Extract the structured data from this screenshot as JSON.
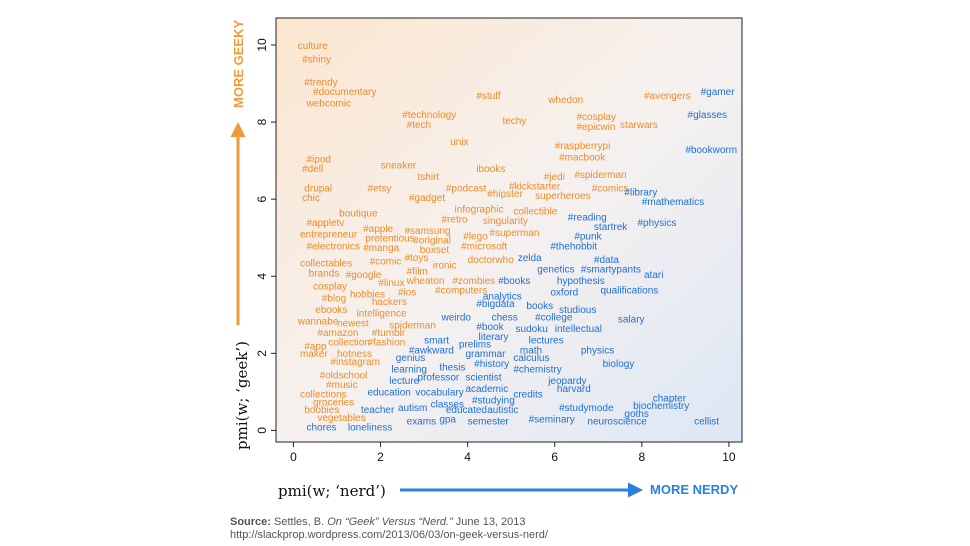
{
  "chart_data": {
    "type": "scatter",
    "title": "",
    "xlabel": "pmi(w; ‘nerd’)",
    "ylabel": "pmi(w; ‘geek’)",
    "x_direction_label": "MORE NERDY",
    "y_direction_label": "MORE GEEKY",
    "xlim": [
      -0.4,
      10.3
    ],
    "ylim": [
      -0.3,
      10.7
    ],
    "x_ticks": [
      0,
      2,
      4,
      6,
      8,
      10
    ],
    "y_ticks": [
      0,
      2,
      4,
      6,
      8,
      10
    ],
    "grid": false,
    "colors": {
      "geek": "#ef8c2a",
      "nerd": "#1f6fd6",
      "arrow_geek": "#f29a3a",
      "arrow_nerd": "#2a7fe0"
    },
    "words": [
      {
        "text": "culture",
        "x": 0.1,
        "y": 9.9,
        "group": "geek"
      },
      {
        "text": "#shiny",
        "x": 0.2,
        "y": 9.55,
        "group": "geek"
      },
      {
        "text": "#trendy",
        "x": 0.25,
        "y": 8.95,
        "group": "geek"
      },
      {
        "text": "#documentary",
        "x": 0.45,
        "y": 8.7,
        "group": "geek"
      },
      {
        "text": "webcomic",
        "x": 0.3,
        "y": 8.4,
        "group": "geek"
      },
      {
        "text": "#stuff",
        "x": 4.2,
        "y": 8.6,
        "group": "geek"
      },
      {
        "text": "whedon",
        "x": 5.85,
        "y": 8.5,
        "group": "geek"
      },
      {
        "text": "#avengers",
        "x": 8.05,
        "y": 8.6,
        "group": "geek"
      },
      {
        "text": "#gamer",
        "x": 9.35,
        "y": 8.7,
        "group": "nerd"
      },
      {
        "text": "#technology",
        "x": 2.5,
        "y": 8.1,
        "group": "geek"
      },
      {
        "text": "#tech",
        "x": 2.6,
        "y": 7.85,
        "group": "geek"
      },
      {
        "text": "techy",
        "x": 4.8,
        "y": 7.95,
        "group": "geek"
      },
      {
        "text": "#cosplay",
        "x": 6.5,
        "y": 8.05,
        "group": "geek"
      },
      {
        "text": "#epicwin",
        "x": 6.5,
        "y": 7.8,
        "group": "geek"
      },
      {
        "text": "starwars",
        "x": 7.5,
        "y": 7.85,
        "group": "geek"
      },
      {
        "text": "#glasses",
        "x": 9.05,
        "y": 8.1,
        "group": "nerd"
      },
      {
        "text": "unix",
        "x": 3.6,
        "y": 7.4,
        "group": "geek"
      },
      {
        "text": "#raspberrypi",
        "x": 6.0,
        "y": 7.3,
        "group": "geek"
      },
      {
        "text": "#macbook",
        "x": 6.1,
        "y": 7.0,
        "group": "geek"
      },
      {
        "text": "#bookworm",
        "x": 9.0,
        "y": 7.2,
        "group": "nerd"
      },
      {
        "text": "#ipod",
        "x": 0.3,
        "y": 6.95,
        "group": "geek"
      },
      {
        "text": "#dell",
        "x": 0.2,
        "y": 6.7,
        "group": "geek"
      },
      {
        "text": "sneaker",
        "x": 2.0,
        "y": 6.8,
        "group": "geek"
      },
      {
        "text": "ibooks",
        "x": 4.2,
        "y": 6.7,
        "group": "geek"
      },
      {
        "text": "tshirt",
        "x": 2.85,
        "y": 6.5,
        "group": "geek"
      },
      {
        "text": "#jedi",
        "x": 5.75,
        "y": 6.5,
        "group": "geek"
      },
      {
        "text": "#spiderman",
        "x": 6.45,
        "y": 6.55,
        "group": "geek"
      },
      {
        "text": "drupal",
        "x": 0.25,
        "y": 6.2,
        "group": "geek"
      },
      {
        "text": "#etsy",
        "x": 1.7,
        "y": 6.2,
        "group": "geek"
      },
      {
        "text": "#podcast",
        "x": 3.5,
        "y": 6.2,
        "group": "geek"
      },
      {
        "text": "#kickstarter",
        "x": 4.95,
        "y": 6.25,
        "group": "geek"
      },
      {
        "text": "#comics",
        "x": 6.85,
        "y": 6.2,
        "group": "geek"
      },
      {
        "text": "#library",
        "x": 7.6,
        "y": 6.1,
        "group": "nerd"
      },
      {
        "text": "chic",
        "x": 0.2,
        "y": 5.95,
        "group": "geek"
      },
      {
        "text": "#gadget",
        "x": 2.65,
        "y": 5.95,
        "group": "geek"
      },
      {
        "text": "#hipster",
        "x": 4.45,
        "y": 6.05,
        "group": "geek"
      },
      {
        "text": "superheroes",
        "x": 5.55,
        "y": 6.0,
        "group": "geek"
      },
      {
        "text": "#mathematics",
        "x": 8.0,
        "y": 5.85,
        "group": "nerd"
      },
      {
        "text": "infographic",
        "x": 3.7,
        "y": 5.65,
        "group": "geek"
      },
      {
        "text": "collectible",
        "x": 5.05,
        "y": 5.6,
        "group": "geek"
      },
      {
        "text": "boutique",
        "x": 1.05,
        "y": 5.55,
        "group": "geek"
      },
      {
        "text": "#retro",
        "x": 3.4,
        "y": 5.4,
        "group": "geek"
      },
      {
        "text": "singularity",
        "x": 4.35,
        "y": 5.35,
        "group": "geek"
      },
      {
        "text": "#reading",
        "x": 6.3,
        "y": 5.45,
        "group": "nerd"
      },
      {
        "text": "#physics",
        "x": 7.9,
        "y": 5.3,
        "group": "nerd"
      },
      {
        "text": "startrek",
        "x": 6.9,
        "y": 5.2,
        "group": "nerd"
      },
      {
        "text": "#appletv",
        "x": 0.3,
        "y": 5.3,
        "group": "geek"
      },
      {
        "text": "#apple",
        "x": 1.6,
        "y": 5.15,
        "group": "geek"
      },
      {
        "text": "#samsung",
        "x": 2.55,
        "y": 5.1,
        "group": "geek"
      },
      {
        "text": "#superman",
        "x": 4.5,
        "y": 5.05,
        "group": "geek"
      },
      {
        "text": "entrepreneur",
        "x": 0.15,
        "y": 5.0,
        "group": "geek"
      },
      {
        "text": "pretentious",
        "x": 1.65,
        "y": 4.9,
        "group": "geek"
      },
      {
        "text": "#original",
        "x": 2.75,
        "y": 4.85,
        "group": "geek"
      },
      {
        "text": "#lego",
        "x": 3.9,
        "y": 4.95,
        "group": "geek"
      },
      {
        "text": "#punk",
        "x": 6.45,
        "y": 4.95,
        "group": "nerd"
      },
      {
        "text": "#electronics",
        "x": 0.3,
        "y": 4.7,
        "group": "geek"
      },
      {
        "text": "#manga",
        "x": 1.6,
        "y": 4.65,
        "group": "geek"
      },
      {
        "text": "boxset",
        "x": 2.9,
        "y": 4.6,
        "group": "geek"
      },
      {
        "text": "#microsoft",
        "x": 3.85,
        "y": 4.7,
        "group": "geek"
      },
      {
        "text": "#thehobbit",
        "x": 5.9,
        "y": 4.7,
        "group": "nerd"
      },
      {
        "text": "#toys",
        "x": 2.55,
        "y": 4.4,
        "group": "geek"
      },
      {
        "text": "zelda",
        "x": 5.15,
        "y": 4.4,
        "group": "nerd"
      },
      {
        "text": "#data",
        "x": 6.9,
        "y": 4.35,
        "group": "nerd"
      },
      {
        "text": "collectables",
        "x": 0.15,
        "y": 4.25,
        "group": "geek"
      },
      {
        "text": "#comic",
        "x": 1.75,
        "y": 4.3,
        "group": "geek"
      },
      {
        "text": "ironic",
        "x": 3.2,
        "y": 4.2,
        "group": "geek"
      },
      {
        "text": "doctorwho",
        "x": 4.0,
        "y": 4.35,
        "group": "geek"
      },
      {
        "text": "genetics",
        "x": 5.6,
        "y": 4.1,
        "group": "nerd"
      },
      {
        "text": "#smartypants",
        "x": 6.6,
        "y": 4.1,
        "group": "nerd"
      },
      {
        "text": "brands",
        "x": 0.35,
        "y": 4.0,
        "group": "geek"
      },
      {
        "text": "#google",
        "x": 1.2,
        "y": 3.95,
        "group": "geek"
      },
      {
        "text": "#film",
        "x": 2.6,
        "y": 4.05,
        "group": "geek"
      },
      {
        "text": "atari",
        "x": 8.05,
        "y": 3.95,
        "group": "nerd"
      },
      {
        "text": "#linux",
        "x": 1.95,
        "y": 3.75,
        "group": "geek"
      },
      {
        "text": "wheaton",
        "x": 2.6,
        "y": 3.8,
        "group": "geek"
      },
      {
        "text": "#zombies",
        "x": 3.65,
        "y": 3.8,
        "group": "geek"
      },
      {
        "text": "#books",
        "x": 4.7,
        "y": 3.8,
        "group": "nerd"
      },
      {
        "text": "hypothesis",
        "x": 6.05,
        "y": 3.8,
        "group": "nerd"
      },
      {
        "text": "cosplay",
        "x": 0.45,
        "y": 3.65,
        "group": "geek"
      },
      {
        "text": "#computers",
        "x": 3.25,
        "y": 3.55,
        "group": "geek"
      },
      {
        "text": "oxford",
        "x": 5.9,
        "y": 3.5,
        "group": "nerd"
      },
      {
        "text": "qualifications",
        "x": 7.05,
        "y": 3.55,
        "group": "nerd"
      },
      {
        "text": "#blog",
        "x": 0.65,
        "y": 3.35,
        "group": "geek"
      },
      {
        "text": "hobbies",
        "x": 1.3,
        "y": 3.45,
        "group": "geek"
      },
      {
        "text": "#ios",
        "x": 2.4,
        "y": 3.5,
        "group": "geek"
      },
      {
        "text": "analytics",
        "x": 4.35,
        "y": 3.4,
        "group": "nerd"
      },
      {
        "text": "hackers",
        "x": 1.8,
        "y": 3.25,
        "group": "geek"
      },
      {
        "text": "#bigdata",
        "x": 4.2,
        "y": 3.2,
        "group": "nerd"
      },
      {
        "text": "books",
        "x": 5.35,
        "y": 3.15,
        "group": "nerd"
      },
      {
        "text": "studious",
        "x": 6.1,
        "y": 3.05,
        "group": "nerd"
      },
      {
        "text": "ebooks",
        "x": 0.5,
        "y": 3.05,
        "group": "geek"
      },
      {
        "text": "intelligence",
        "x": 1.45,
        "y": 2.95,
        "group": "geek"
      },
      {
        "text": "weirdo",
        "x": 3.4,
        "y": 2.85,
        "group": "nerd"
      },
      {
        "text": "chess",
        "x": 4.55,
        "y": 2.85,
        "group": "nerd"
      },
      {
        "text": "#college",
        "x": 5.55,
        "y": 2.85,
        "group": "nerd"
      },
      {
        "text": "salary",
        "x": 7.45,
        "y": 2.8,
        "group": "nerd"
      },
      {
        "text": "wannabe",
        "x": 0.1,
        "y": 2.75,
        "group": "geek"
      },
      {
        "text": "newest",
        "x": 1.0,
        "y": 2.7,
        "group": "geek"
      },
      {
        "text": "spiderman",
        "x": 2.2,
        "y": 2.65,
        "group": "geek"
      },
      {
        "text": "#book",
        "x": 4.2,
        "y": 2.6,
        "group": "nerd"
      },
      {
        "text": "sudoku",
        "x": 5.1,
        "y": 2.55,
        "group": "nerd"
      },
      {
        "text": "intellectual",
        "x": 6.0,
        "y": 2.55,
        "group": "nerd"
      },
      {
        "text": "#amazon",
        "x": 0.55,
        "y": 2.45,
        "group": "geek"
      },
      {
        "text": "#tumblr",
        "x": 1.8,
        "y": 2.45,
        "group": "geek"
      },
      {
        "text": "literary",
        "x": 4.25,
        "y": 2.35,
        "group": "nerd"
      },
      {
        "text": "lectures",
        "x": 5.4,
        "y": 2.25,
        "group": "nerd"
      },
      {
        "text": "collection",
        "x": 0.8,
        "y": 2.2,
        "group": "geek"
      },
      {
        "text": "#fashion",
        "x": 1.7,
        "y": 2.2,
        "group": "geek"
      },
      {
        "text": "smart",
        "x": 3.0,
        "y": 2.25,
        "group": "nerd"
      },
      {
        "text": "prelims",
        "x": 3.8,
        "y": 2.15,
        "group": "nerd"
      },
      {
        "text": "math",
        "x": 5.2,
        "y": 2.0,
        "group": "nerd"
      },
      {
        "text": "physics",
        "x": 6.6,
        "y": 2.0,
        "group": "nerd"
      },
      {
        "text": "#app",
        "x": 0.25,
        "y": 2.1,
        "group": "geek"
      },
      {
        "text": "#awkward",
        "x": 2.65,
        "y": 2.0,
        "group": "nerd"
      },
      {
        "text": "grammar",
        "x": 3.95,
        "y": 1.9,
        "group": "nerd"
      },
      {
        "text": "calculus",
        "x": 5.05,
        "y": 1.8,
        "group": "nerd"
      },
      {
        "text": "maker",
        "x": 0.15,
        "y": 1.9,
        "group": "geek"
      },
      {
        "text": "hotness",
        "x": 1.0,
        "y": 1.9,
        "group": "geek"
      },
      {
        "text": "genius",
        "x": 2.35,
        "y": 1.8,
        "group": "nerd"
      },
      {
        "text": "#history",
        "x": 4.15,
        "y": 1.65,
        "group": "nerd"
      },
      {
        "text": "biology",
        "x": 7.1,
        "y": 1.65,
        "group": "nerd"
      },
      {
        "text": "#instagram",
        "x": 0.85,
        "y": 1.7,
        "group": "geek"
      },
      {
        "text": "thesis",
        "x": 3.35,
        "y": 1.55,
        "group": "nerd"
      },
      {
        "text": "learning",
        "x": 2.25,
        "y": 1.5,
        "group": "nerd"
      },
      {
        "text": "#chemistry",
        "x": 5.05,
        "y": 1.5,
        "group": "nerd"
      },
      {
        "text": "#oldschool",
        "x": 0.6,
        "y": 1.35,
        "group": "geek"
      },
      {
        "text": "professor",
        "x": 2.85,
        "y": 1.3,
        "group": "nerd"
      },
      {
        "text": "scientist",
        "x": 3.95,
        "y": 1.3,
        "group": "nerd"
      },
      {
        "text": "jeopardy",
        "x": 5.85,
        "y": 1.2,
        "group": "nerd"
      },
      {
        "text": "lecture",
        "x": 2.2,
        "y": 1.2,
        "group": "nerd"
      },
      {
        "text": "#music",
        "x": 0.75,
        "y": 1.1,
        "group": "geek"
      },
      {
        "text": "academic",
        "x": 3.95,
        "y": 1.0,
        "group": "nerd"
      },
      {
        "text": "harvard",
        "x": 6.05,
        "y": 1.0,
        "group": "nerd"
      },
      {
        "text": "education",
        "x": 1.7,
        "y": 0.9,
        "group": "nerd"
      },
      {
        "text": "vocabulary",
        "x": 2.8,
        "y": 0.9,
        "group": "nerd"
      },
      {
        "text": "credits",
        "x": 5.05,
        "y": 0.85,
        "group": "nerd"
      },
      {
        "text": "collections",
        "x": 0.15,
        "y": 0.85,
        "group": "geek"
      },
      {
        "text": "#studying",
        "x": 4.1,
        "y": 0.7,
        "group": "nerd"
      },
      {
        "text": "chapter",
        "x": 8.25,
        "y": 0.75,
        "group": "nerd"
      },
      {
        "text": "groceries",
        "x": 0.45,
        "y": 0.65,
        "group": "geek"
      },
      {
        "text": "classes",
        "x": 3.15,
        "y": 0.6,
        "group": "nerd"
      },
      {
        "text": "biochemistry",
        "x": 7.8,
        "y": 0.55,
        "group": "nerd"
      },
      {
        "text": "boobies",
        "x": 0.25,
        "y": 0.45,
        "group": "geek"
      },
      {
        "text": "teacher",
        "x": 1.55,
        "y": 0.45,
        "group": "nerd"
      },
      {
        "text": "autism",
        "x": 2.4,
        "y": 0.5,
        "group": "nerd"
      },
      {
        "text": "educated",
        "x": 3.5,
        "y": 0.45,
        "group": "nerd"
      },
      {
        "text": "autistic",
        "x": 4.45,
        "y": 0.45,
        "group": "nerd"
      },
      {
        "text": "#studymode",
        "x": 6.1,
        "y": 0.5,
        "group": "nerd"
      },
      {
        "text": "goths",
        "x": 7.6,
        "y": 0.35,
        "group": "nerd"
      },
      {
        "text": "vegetables",
        "x": 0.55,
        "y": 0.25,
        "group": "geek"
      },
      {
        "text": "exams",
        "x": 2.6,
        "y": 0.15,
        "group": "nerd"
      },
      {
        "text": "gpa",
        "x": 3.35,
        "y": 0.2,
        "group": "nerd"
      },
      {
        "text": "semester",
        "x": 4.0,
        "y": 0.15,
        "group": "nerd"
      },
      {
        "text": "#seminary",
        "x": 5.4,
        "y": 0.2,
        "group": "nerd"
      },
      {
        "text": "neuroscience",
        "x": 6.75,
        "y": 0.15,
        "group": "nerd"
      },
      {
        "text": "cellist",
        "x": 9.2,
        "y": 0.15,
        "group": "nerd"
      },
      {
        "text": "chores",
        "x": 0.3,
        "y": 0.0,
        "group": "nerd"
      },
      {
        "text": "loneliness",
        "x": 1.25,
        "y": 0.0,
        "group": "nerd"
      }
    ]
  },
  "source": {
    "label": "Source:",
    "text_plain": " Settles, B. ",
    "text_italic": "On “Geek” Versus “Nerd.”",
    "text_date": " June 13, 2013",
    "url": "http://slackprop.wordpress.com/2013/06/03/on-geek-versus-nerd/"
  }
}
